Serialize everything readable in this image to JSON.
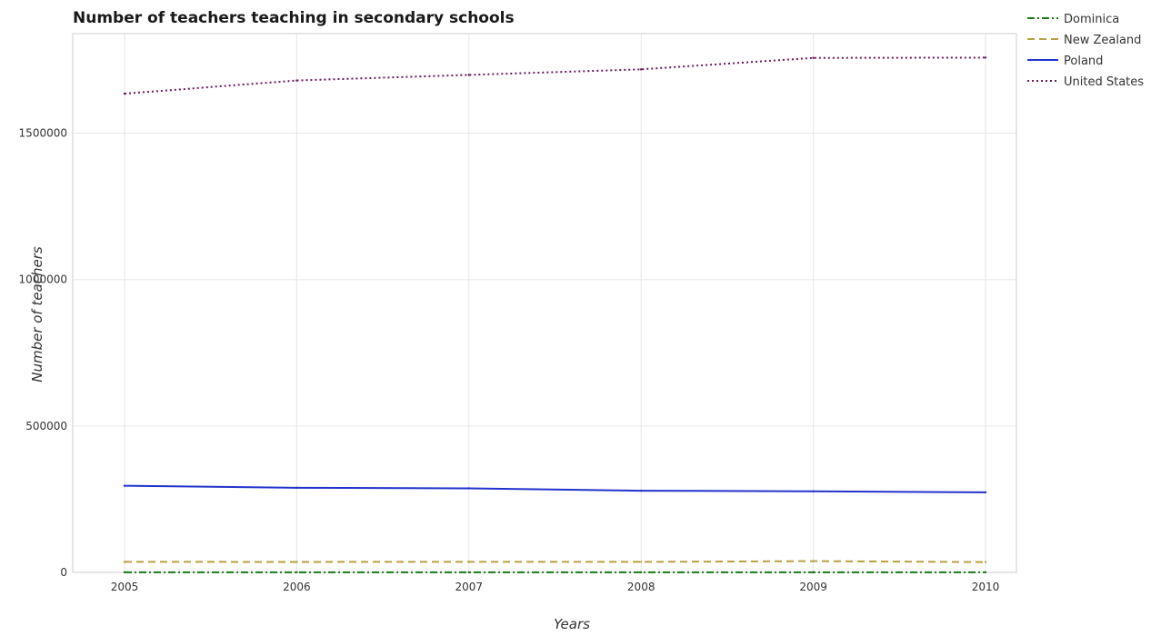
{
  "chart_data": {
    "type": "line",
    "title": "Number of teachers teaching in secondary schools",
    "xlabel": "Years",
    "ylabel": "Number of teachers",
    "categories": [
      "2005",
      "2006",
      "2007",
      "2008",
      "2009",
      "2010"
    ],
    "yticks": [
      0,
      500000,
      1000000,
      1500000
    ],
    "ytick_labels": [
      "0",
      "500000",
      "1000000",
      "1500000"
    ],
    "ylim": [
      0,
      1840000
    ],
    "grid": true,
    "legend_position": "top-right",
    "series": [
      {
        "name": "Dominica",
        "color": "#1a7a1a",
        "dash": "dash-dot",
        "values": [
          450,
          440,
          430,
          430,
          420,
          430
        ]
      },
      {
        "name": "New Zealand",
        "color": "#b8a040",
        "dash": "dashed",
        "values": [
          36000,
          35800,
          36200,
          35900,
          38500,
          35200
        ]
      },
      {
        "name": "Poland",
        "color": "#2233cc",
        "dash": "solid",
        "values": [
          296000,
          289000,
          287000,
          279000,
          277000,
          273500
        ]
      },
      {
        "name": "United States",
        "color": "#6b1a5a",
        "dash": "dotted",
        "values": [
          1635000,
          1680000,
          1699000,
          1718000,
          1757000,
          1758000
        ]
      }
    ]
  }
}
